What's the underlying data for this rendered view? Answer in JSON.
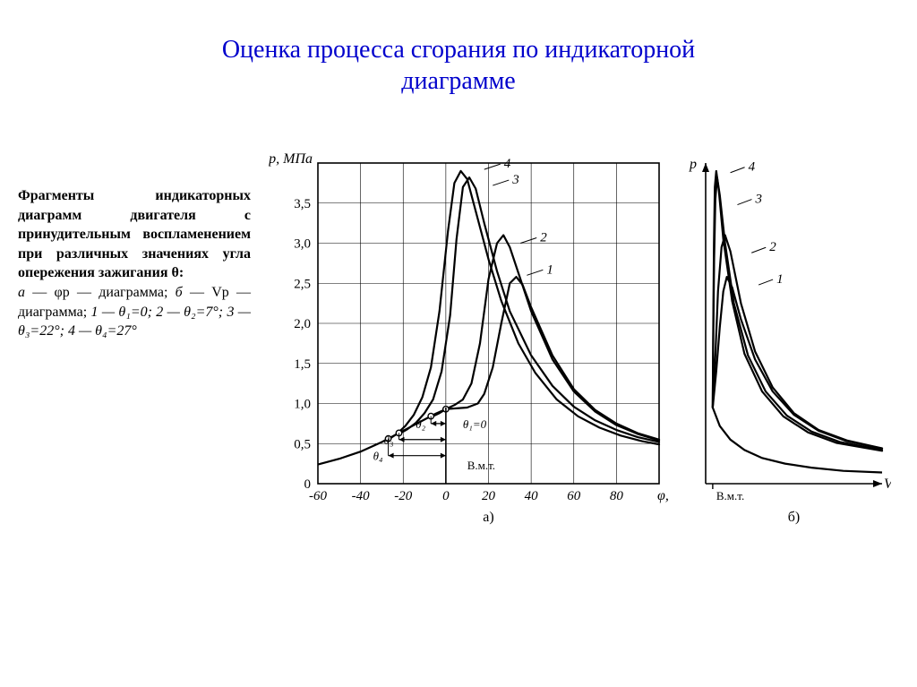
{
  "title_line1": "Оценка процесса сгорания по индикаторной",
  "title_line2": "диаграмме",
  "title_color": "#0000cc",
  "title_fontsize": 28,
  "caption": {
    "bold": "Фрагменты индикаторных диаграмм двигателя с принудительным воспламенением при различных значениях угла опережения зажигания θ:",
    "line2_a": "а",
    "line2_phi": " — φр — диаграмма; ",
    "line2_b": "б",
    "line2_v": " — Vр — диаграмма;",
    "legend_1": "1 — θ₁=0;   2 — θ₂=7°;   3 — θ₃=22°;   4 — θ₄=27°"
  },
  "chart_a": {
    "type": "line",
    "ylabel": "р, МПа",
    "xlabel": "φ,°",
    "panel_label": "а)",
    "xlim": [
      -60,
      100
    ],
    "ylim": [
      0,
      4.0
    ],
    "xtick_step": 20,
    "ytick_step": 0.5,
    "x_ticks": [
      -60,
      -40,
      -20,
      0,
      20,
      40,
      60,
      80
    ],
    "y_ticks": [
      0,
      0.5,
      1.0,
      1.5,
      2.0,
      2.5,
      3.0,
      3.5
    ],
    "y_tick_labels": [
      "0",
      "0,5",
      "1,0",
      "1,5",
      "2,0",
      "2,5",
      "3,0",
      "3,5"
    ],
    "grid_color": "#000000",
    "grid_width": 0.6,
    "line_color": "#000000",
    "line_width": 2.2,
    "background_color": "#ffffff",
    "series": {
      "compression": [
        [
          -60,
          0.24
        ],
        [
          -50,
          0.31
        ],
        [
          -40,
          0.4
        ],
        [
          -30,
          0.52
        ],
        [
          -20,
          0.66
        ],
        [
          -10,
          0.8
        ],
        [
          -5,
          0.87
        ],
        [
          0,
          0.93
        ]
      ],
      "1": [
        [
          0,
          0.93
        ],
        [
          5,
          0.94
        ],
        [
          10,
          0.95
        ],
        [
          15,
          1.0
        ],
        [
          18,
          1.12
        ],
        [
          22,
          1.45
        ],
        [
          26,
          2.0
        ],
        [
          30,
          2.5
        ],
        [
          33,
          2.58
        ],
        [
          36,
          2.48
        ],
        [
          40,
          2.2
        ],
        [
          50,
          1.6
        ],
        [
          60,
          1.18
        ],
        [
          70,
          0.92
        ],
        [
          80,
          0.75
        ],
        [
          90,
          0.63
        ],
        [
          100,
          0.55
        ]
      ],
      "2": [
        [
          -7,
          0.83
        ],
        [
          -3,
          0.88
        ],
        [
          0,
          0.93
        ],
        [
          4,
          0.98
        ],
        [
          8,
          1.05
        ],
        [
          12,
          1.25
        ],
        [
          16,
          1.75
        ],
        [
          20,
          2.55
        ],
        [
          24,
          3.0
        ],
        [
          27,
          3.1
        ],
        [
          30,
          2.95
        ],
        [
          35,
          2.55
        ],
        [
          40,
          2.15
        ],
        [
          50,
          1.55
        ],
        [
          60,
          1.15
        ],
        [
          70,
          0.9
        ],
        [
          80,
          0.73
        ],
        [
          90,
          0.62
        ],
        [
          100,
          0.54
        ]
      ],
      "3": [
        [
          -22,
          0.62
        ],
        [
          -18,
          0.68
        ],
        [
          -14,
          0.76
        ],
        [
          -10,
          0.88
        ],
        [
          -6,
          1.05
        ],
        [
          -2,
          1.4
        ],
        [
          2,
          2.1
        ],
        [
          5,
          3.05
        ],
        [
          8,
          3.7
        ],
        [
          11,
          3.82
        ],
        [
          14,
          3.68
        ],
        [
          18,
          3.25
        ],
        [
          24,
          2.65
        ],
        [
          30,
          2.15
        ],
        [
          40,
          1.6
        ],
        [
          50,
          1.22
        ],
        [
          60,
          0.96
        ],
        [
          70,
          0.79
        ],
        [
          80,
          0.67
        ],
        [
          90,
          0.58
        ],
        [
          100,
          0.52
        ]
      ],
      "4": [
        [
          -27,
          0.55
        ],
        [
          -23,
          0.62
        ],
        [
          -19,
          0.72
        ],
        [
          -15,
          0.86
        ],
        [
          -11,
          1.08
        ],
        [
          -7,
          1.45
        ],
        [
          -3,
          2.15
        ],
        [
          1,
          3.15
        ],
        [
          4,
          3.75
        ],
        [
          7,
          3.9
        ],
        [
          10,
          3.8
        ],
        [
          14,
          3.4
        ],
        [
          20,
          2.8
        ],
        [
          26,
          2.28
        ],
        [
          34,
          1.75
        ],
        [
          42,
          1.38
        ],
        [
          52,
          1.05
        ],
        [
          62,
          0.84
        ],
        [
          72,
          0.7
        ],
        [
          82,
          0.6
        ],
        [
          92,
          0.53
        ],
        [
          100,
          0.49
        ]
      ]
    },
    "curve_labels": [
      {
        "text": "4",
        "x": 18,
        "y": 3.92
      },
      {
        "text": "3",
        "x": 22,
        "y": 3.72
      },
      {
        "text": "2",
        "x": 35,
        "y": 3.0
      },
      {
        "text": "1",
        "x": 38,
        "y": 2.6
      }
    ],
    "theta_labels": {
      "t2": "θ₂",
      "t3": "θ₃",
      "t4": "θ₄",
      "t1": "θ₁=0"
    },
    "vmt_label": "В.м.т.",
    "theta_markers": [
      {
        "label": "θ₂",
        "x": -7
      },
      {
        "label": "θ₃",
        "x": -22
      },
      {
        "label": "θ₄",
        "x": -27
      },
      {
        "label": "θ₁=0",
        "x": 0
      }
    ]
  },
  "chart_b": {
    "type": "line",
    "ylabel": "р",
    "xlabel": "V",
    "panel_label": "б)",
    "vmt_label": "В.м.т.",
    "line_color": "#000000",
    "line_width": 2.2,
    "background_color": "#ffffff",
    "xlim": [
      0,
      100
    ],
    "ylim": [
      0,
      4.0
    ],
    "series": {
      "expansion_base": [
        [
          4,
          0.95
        ],
        [
          8,
          0.72
        ],
        [
          14,
          0.55
        ],
        [
          22,
          0.42
        ],
        [
          32,
          0.32
        ],
        [
          45,
          0.25
        ],
        [
          60,
          0.2
        ],
        [
          78,
          0.16
        ],
        [
          100,
          0.14
        ]
      ],
      "1": [
        [
          4,
          0.95
        ],
        [
          6,
          1.4
        ],
        [
          8,
          1.95
        ],
        [
          10,
          2.4
        ],
        [
          12,
          2.58
        ],
        [
          15,
          2.45
        ],
        [
          20,
          2.05
        ],
        [
          28,
          1.55
        ],
        [
          38,
          1.15
        ],
        [
          50,
          0.86
        ],
        [
          64,
          0.66
        ],
        [
          80,
          0.53
        ],
        [
          100,
          0.44
        ]
      ],
      "2": [
        [
          4,
          0.95
        ],
        [
          5.5,
          1.6
        ],
        [
          7,
          2.4
        ],
        [
          9,
          2.95
        ],
        [
          11,
          3.1
        ],
        [
          14,
          2.9
        ],
        [
          20,
          2.25
        ],
        [
          28,
          1.65
        ],
        [
          38,
          1.2
        ],
        [
          50,
          0.88
        ],
        [
          64,
          0.67
        ],
        [
          80,
          0.54
        ],
        [
          100,
          0.44
        ]
      ],
      "3": [
        [
          4,
          0.95
        ],
        [
          4.3,
          1.8
        ],
        [
          4.8,
          2.8
        ],
        [
          5.5,
          3.55
        ],
        [
          6.5,
          3.82
        ],
        [
          8,
          3.6
        ],
        [
          11,
          3.0
        ],
        [
          16,
          2.25
        ],
        [
          24,
          1.6
        ],
        [
          34,
          1.15
        ],
        [
          46,
          0.85
        ],
        [
          60,
          0.65
        ],
        [
          76,
          0.52
        ],
        [
          100,
          0.42
        ]
      ],
      "4": [
        [
          4,
          0.95
        ],
        [
          4.3,
          1.95
        ],
        [
          4.7,
          3.0
        ],
        [
          5.2,
          3.7
        ],
        [
          6.0,
          3.9
        ],
        [
          7.5,
          3.65
        ],
        [
          10,
          3.05
        ],
        [
          15,
          2.28
        ],
        [
          22,
          1.62
        ],
        [
          32,
          1.15
        ],
        [
          44,
          0.84
        ],
        [
          58,
          0.64
        ],
        [
          74,
          0.51
        ],
        [
          100,
          0.41
        ]
      ]
    },
    "curve_labels": [
      {
        "text": "4",
        "x": 14,
        "y": 3.88
      },
      {
        "text": "3",
        "x": 18,
        "y": 3.48
      },
      {
        "text": "2",
        "x": 26,
        "y": 2.88
      },
      {
        "text": "1",
        "x": 30,
        "y": 2.48
      }
    ]
  }
}
